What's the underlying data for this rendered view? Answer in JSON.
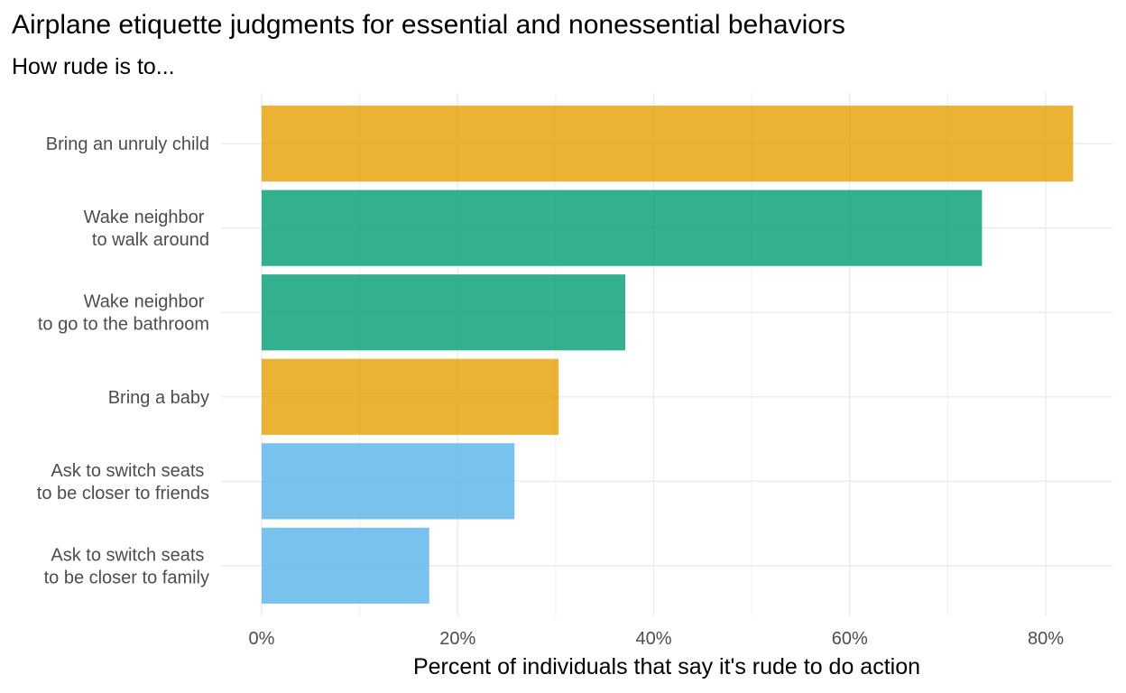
{
  "chart_data": {
    "type": "bar",
    "orientation": "horizontal",
    "title": "Airplane etiquette judgments for essential and nonessential behaviors",
    "subtitle": "How rude is to...",
    "xlabel": "Percent of individuals that say it's rude to do action",
    "ylabel": "",
    "xlim": [
      0,
      87
    ],
    "x_ticks": [
      0,
      20,
      40,
      60,
      80
    ],
    "x_tick_labels": [
      "0%",
      "20%",
      "40%",
      "60%",
      "80%"
    ],
    "grid": true,
    "legend": "none",
    "categories": [
      {
        "label_lines": [
          "Bring an unruly child"
        ],
        "value": 82.8,
        "color": "#E69F00"
      },
      {
        "label_lines": [
          "Wake neighbor ",
          "to walk around"
        ],
        "value": 73.5,
        "color": "#009E73"
      },
      {
        "label_lines": [
          "Wake neighbor ",
          "to go to the bathroom"
        ],
        "value": 37.1,
        "color": "#009E73"
      },
      {
        "label_lines": [
          "Bring a baby"
        ],
        "value": 30.3,
        "color": "#E69F00"
      },
      {
        "label_lines": [
          "Ask to switch seats ",
          "to be closer to friends"
        ],
        "value": 25.8,
        "color": "#56B4E9"
      },
      {
        "label_lines": [
          "Ask to switch seats ",
          "to be closer to family"
        ],
        "value": 17.1,
        "color": "#56B4E9"
      }
    ]
  }
}
